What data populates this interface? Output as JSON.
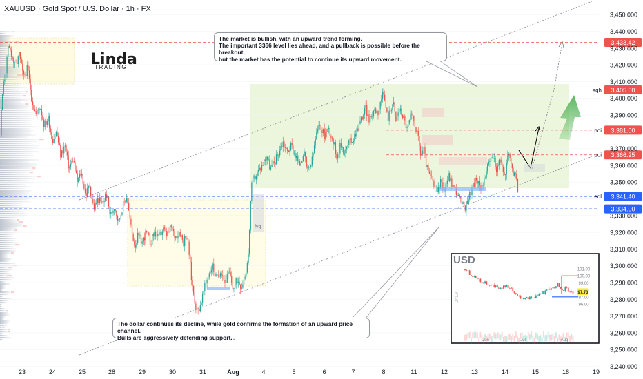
{
  "header": {
    "title": "XAUUSD · Gold Spot / U.S. Dollar · 1h · FX"
  },
  "logo": {
    "main": "Linda",
    "sub": "TRADING"
  },
  "notes": {
    "top": [
      "The market is bullish, with an upward trend forming.",
      "The important 3366 level lies ahead, and a pullback is possible before the breakout,",
      "but the market has the potential to continue its upward movement."
    ],
    "bottom": [
      "The dollar continues its decline, while gold confirms the formation of an upward price channel.",
      "Bulls are aggressively defending support..."
    ]
  },
  "zone_labels": {
    "fvg": "fvg",
    "eqh": "eqh",
    "poi_1": "poi",
    "poi_2": "poi",
    "eql": "eql"
  },
  "colors": {
    "up": "#26a69a",
    "down": "#ef5350",
    "red_line": "#ef5350",
    "blue_line": "#2962ff",
    "zone_fill": "#dff0c8"
  },
  "chart_data": {
    "type": "candlestick",
    "symbol": "XAUUSD",
    "timeframe": "1h",
    "x_ticks": [
      "23",
      "24",
      "25",
      "28",
      "29",
      "30",
      "31",
      "Aug",
      "4",
      "5",
      "6",
      "7",
      "8",
      "11",
      "12",
      "13",
      "14",
      "15",
      "18",
      "19"
    ],
    "y_ticks": [
      3240,
      3250,
      3260,
      3270,
      3280,
      3290,
      3300,
      3310,
      3320,
      3330,
      3340,
      3350,
      3360,
      3370,
      3380,
      3390,
      3400,
      3410,
      3420,
      3430,
      3440,
      3450
    ],
    "ylim": [
      3234,
      3458
    ],
    "close_path": [
      [
        0,
        3378
      ],
      [
        4,
        3405
      ],
      [
        8,
        3415
      ],
      [
        12,
        3430
      ],
      [
        16,
        3428
      ],
      [
        22,
        3418
      ],
      [
        28,
        3426
      ],
      [
        34,
        3412
      ],
      [
        40,
        3418
      ],
      [
        46,
        3400
      ],
      [
        52,
        3390
      ],
      [
        58,
        3396
      ],
      [
        64,
        3384
      ],
      [
        70,
        3388
      ],
      [
        76,
        3375
      ],
      [
        82,
        3380
      ],
      [
        88,
        3366
      ],
      [
        94,
        3372
      ],
      [
        100,
        3358
      ],
      [
        106,
        3364
      ],
      [
        112,
        3350
      ],
      [
        118,
        3356
      ],
      [
        124,
        3342
      ],
      [
        130,
        3348
      ],
      [
        136,
        3334
      ],
      [
        142,
        3340
      ],
      [
        148,
        3337
      ],
      [
        154,
        3343
      ],
      [
        160,
        3330
      ],
      [
        166,
        3336
      ],
      [
        172,
        3326
      ],
      [
        178,
        3336
      ],
      [
        184,
        3342
      ],
      [
        188,
        3328
      ],
      [
        192,
        3318
      ],
      [
        196,
        3312
      ],
      [
        200,
        3318
      ],
      [
        206,
        3314
      ],
      [
        212,
        3320
      ],
      [
        218,
        3314
      ],
      [
        224,
        3320
      ],
      [
        230,
        3316
      ],
      [
        236,
        3322
      ],
      [
        242,
        3318
      ],
      [
        248,
        3323
      ],
      [
        254,
        3317
      ],
      [
        260,
        3321
      ],
      [
        266,
        3314
      ],
      [
        270,
        3320
      ],
      [
        274,
        3308
      ],
      [
        278,
        3290
      ],
      [
        282,
        3280
      ],
      [
        286,
        3272
      ],
      [
        290,
        3276
      ],
      [
        296,
        3286
      ],
      [
        302,
        3295
      ],
      [
        308,
        3300
      ],
      [
        314,
        3292
      ],
      [
        320,
        3298
      ],
      [
        326,
        3290
      ],
      [
        332,
        3296
      ],
      [
        338,
        3286
      ],
      [
        344,
        3292
      ],
      [
        350,
        3288
      ],
      [
        356,
        3296
      ],
      [
        360,
        3306
      ],
      [
        364,
        3346
      ],
      [
        368,
        3352
      ],
      [
        374,
        3356
      ],
      [
        380,
        3360
      ],
      [
        386,
        3366
      ],
      [
        392,
        3358
      ],
      [
        398,
        3362
      ],
      [
        404,
        3368
      ],
      [
        410,
        3374
      ],
      [
        416,
        3368
      ],
      [
        422,
        3372
      ],
      [
        428,
        3366
      ],
      [
        434,
        3360
      ],
      [
        440,
        3368
      ],
      [
        446,
        3356
      ],
      [
        452,
        3362
      ],
      [
        458,
        3378
      ],
      [
        464,
        3384
      ],
      [
        470,
        3378
      ],
      [
        476,
        3382
      ],
      [
        482,
        3376
      ],
      [
        488,
        3366
      ],
      [
        494,
        3372
      ],
      [
        500,
        3368
      ],
      [
        506,
        3374
      ],
      [
        512,
        3376
      ],
      [
        518,
        3382
      ],
      [
        524,
        3388
      ],
      [
        530,
        3394
      ],
      [
        536,
        3386
      ],
      [
        542,
        3394
      ],
      [
        548,
        3392
      ],
      [
        554,
        3402
      ],
      [
        558,
        3398
      ],
      [
        562,
        3388
      ],
      [
        566,
        3394
      ],
      [
        570,
        3398
      ],
      [
        574,
        3386
      ],
      [
        578,
        3394
      ],
      [
        584,
        3390
      ],
      [
        590,
        3382
      ],
      [
        596,
        3390
      ],
      [
        602,
        3384
      ],
      [
        606,
        3376
      ],
      [
        610,
        3366
      ],
      [
        614,
        3370
      ],
      [
        618,
        3360
      ],
      [
        622,
        3354
      ],
      [
        626,
        3352
      ],
      [
        630,
        3346
      ],
      [
        634,
        3344
      ],
      [
        638,
        3350
      ],
      [
        644,
        3346
      ],
      [
        650,
        3354
      ],
      [
        656,
        3348
      ],
      [
        662,
        3344
      ],
      [
        668,
        3338
      ],
      [
        674,
        3334
      ],
      [
        678,
        3340
      ],
      [
        684,
        3346
      ],
      [
        690,
        3352
      ],
      [
        696,
        3346
      ],
      [
        702,
        3352
      ],
      [
        708,
        3360
      ],
      [
        714,
        3366
      ],
      [
        720,
        3358
      ],
      [
        726,
        3362
      ],
      [
        732,
        3352
      ],
      [
        736,
        3368
      ],
      [
        740,
        3362
      ],
      [
        744,
        3356
      ],
      [
        748,
        3352
      ],
      [
        752,
        3341
      ]
    ],
    "levels": [
      {
        "label": "3,433.42",
        "color": "red",
        "style": "dashed"
      },
      {
        "label": "3,405.00",
        "color": "red",
        "style": "dashed",
        "tag": "eqh"
      },
      {
        "label": "3,381.00",
        "color": "red",
        "style": "dashed",
        "tag": "poi"
      },
      {
        "label": "3,366.25",
        "color": "red",
        "style": "dashed",
        "tag": "poi"
      },
      {
        "label": "3,341.40",
        "color": "blue",
        "style": "dashed",
        "tag": "eql"
      },
      {
        "label": "3,334.00",
        "color": "blue",
        "style": "dashed"
      }
    ],
    "inset": {
      "title": "USD",
      "side_label": "DAILY",
      "y_ticks": [
        "101.00",
        "100.00",
        "99.00",
        "98.00",
        "97.00",
        "96.00"
      ],
      "x_ticks": [
        "Jun",
        "Jul",
        "Aug"
      ],
      "last_price": "97.73",
      "close_path": [
        [
          0,
          100.9
        ],
        [
          10,
          100.2
        ],
        [
          20,
          99.6
        ],
        [
          30,
          99.2
        ],
        [
          40,
          98.8
        ],
        [
          50,
          98.5
        ],
        [
          60,
          98.1
        ],
        [
          70,
          98.7
        ],
        [
          80,
          97.9
        ],
        [
          90,
          97.2
        ],
        [
          100,
          96.6
        ],
        [
          110,
          96.9
        ],
        [
          120,
          97.1
        ],
        [
          130,
          97.6
        ],
        [
          140,
          97.9
        ],
        [
          150,
          98.2
        ],
        [
          155,
          98.8
        ],
        [
          160,
          98.5
        ],
        [
          165,
          97.9
        ],
        [
          170,
          98.2
        ],
        [
          175,
          97.8
        ],
        [
          182,
          97.73
        ]
      ]
    }
  }
}
